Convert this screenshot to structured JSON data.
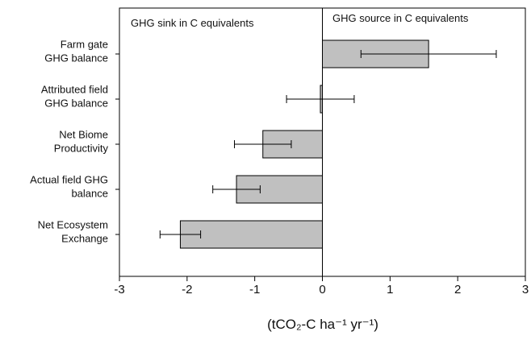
{
  "chart_data": {
    "type": "hbar",
    "categories": [
      "Farm gate\nGHG balance",
      "Attributed field\nGHG balance",
      "Net Biome\nProductivity",
      "Actual field GHG\nbalance",
      "Net Ecosystem\nExchange"
    ],
    "values": [
      1.57,
      -0.03,
      -0.88,
      -1.27,
      -2.1
    ],
    "errors": [
      1.0,
      0.5,
      0.42,
      0.35,
      0.3
    ],
    "color": "#c0c0c0",
    "xlim": [
      -3,
      3
    ],
    "xticks": [
      -3,
      -2,
      -1,
      0,
      1,
      2,
      3
    ],
    "xlabel": "(tCO₂-C ha⁻¹ yr⁻¹)",
    "annotations": [
      "GHG sink in C equivalents",
      "GHG source in C equivalents"
    ]
  }
}
